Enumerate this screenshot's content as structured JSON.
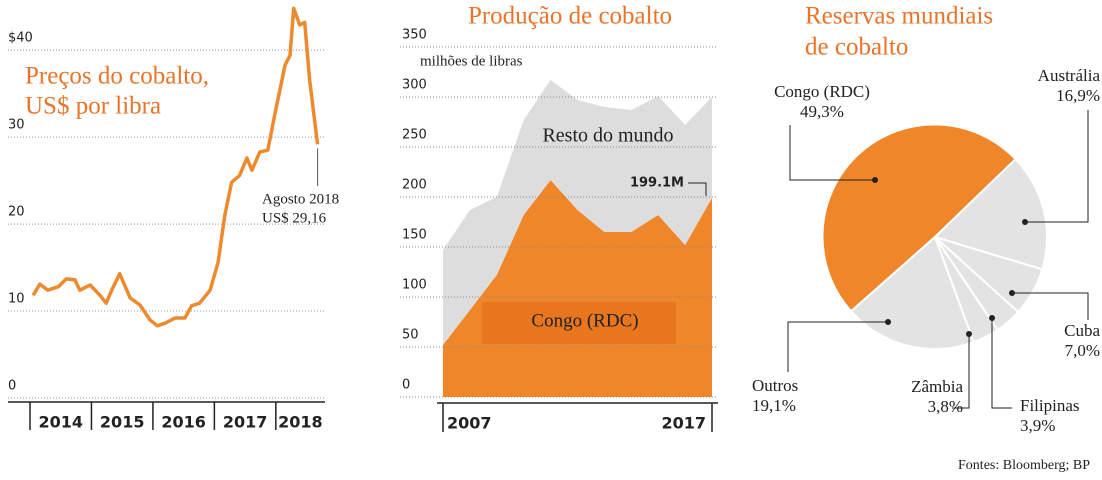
{
  "chart_data": [
    {
      "type": "line",
      "title": [
        "Preços do cobalto,",
        "US$ por libra"
      ],
      "x": [
        2014.05,
        2014.16,
        2014.29,
        2014.46,
        2014.59,
        2014.73,
        2014.81,
        2014.98,
        2015.14,
        2015.24,
        2015.33,
        2015.46,
        2015.63,
        2015.79,
        2015.95,
        2016.07,
        2016.2,
        2016.36,
        2016.52,
        2016.63,
        2016.76,
        2016.93,
        2017.06,
        2017.17,
        2017.28,
        2017.41,
        2017.53,
        2017.61,
        2017.74,
        2017.87,
        2017.98,
        2018.15,
        2018.23,
        2018.29,
        2018.39,
        2018.47,
        2018.55,
        2018.68
      ],
      "values": [
        11.8,
        13.1,
        12.4,
        12.8,
        13.7,
        13.6,
        12.4,
        13,
        11.8,
        10.9,
        12.4,
        14.3,
        11.5,
        10.7,
        9,
        8.3,
        8.6,
        9.2,
        9.2,
        10.6,
        10.9,
        12.4,
        15.6,
        21,
        24.8,
        25.6,
        27.6,
        26.2,
        28.3,
        28.5,
        32.5,
        38.3,
        39.4,
        44.8,
        42.9,
        43.2,
        36.6,
        29.16
      ],
      "color": "#ee8a2e",
      "xlim": [
        2014,
        2018.8
      ],
      "xticks": [
        2014,
        2015,
        2016,
        2017,
        2018
      ],
      "ylim": [
        0,
        46
      ],
      "yticks": [
        0,
        10,
        20,
        30,
        {
          "value": 40,
          "label": "$40"
        }
      ],
      "grid": true,
      "annotation": [
        "Agosto 2018",
        "US$ 29,16"
      ]
    },
    {
      "type": "stacked-area",
      "title": "Produção de cobalto",
      "subtitle": "milhões de libras",
      "x": [
        2007,
        2008,
        2009,
        2010,
        2011,
        2012,
        2013,
        2014,
        2015,
        2016,
        2017
      ],
      "series": [
        {
          "name": "Congo (RDC)",
          "color": "#f0862a",
          "values": [
            52,
            87,
            122,
            182,
            217,
            187,
            165,
            165,
            182,
            152,
            199.1
          ],
          "value_labels": [
            null,
            null,
            null,
            null,
            null,
            null,
            null,
            null,
            null,
            null,
            "199.1M"
          ]
        },
        {
          "name": "Resto do mundo",
          "color": "#dddddd",
          "values": [
            95,
            100,
            78,
            95,
            100,
            110,
            125,
            122,
            119,
            120,
            101
          ]
        }
      ],
      "xticks": [
        2007,
        2017
      ],
      "ylim": [
        0,
        350
      ],
      "yticks": [
        0,
        50,
        100,
        150,
        200,
        250,
        300,
        350
      ],
      "grid": true
    },
    {
      "type": "pie",
      "title": [
        "Reservas mundiais",
        "de cobalto"
      ],
      "categories": [
        "Congo (RDC)",
        "Austrália",
        "Cuba",
        "Filipinas",
        "Zâmbia",
        "Outros"
      ],
      "values": [
        49.3,
        16.9,
        7.0,
        3.9,
        3.8,
        19.1
      ],
      "value_labels": [
        "49,3%",
        "16,9%",
        "7,0%",
        "3,9%",
        "3,8%",
        "19,1%"
      ],
      "colors": [
        "#f0862a",
        "#e3e3e3",
        "#e3e3e3",
        "#e3e3e3",
        "#e3e3e3",
        "#e3e3e3"
      ]
    }
  ],
  "source": "Fontes: Bloomberg; BP"
}
